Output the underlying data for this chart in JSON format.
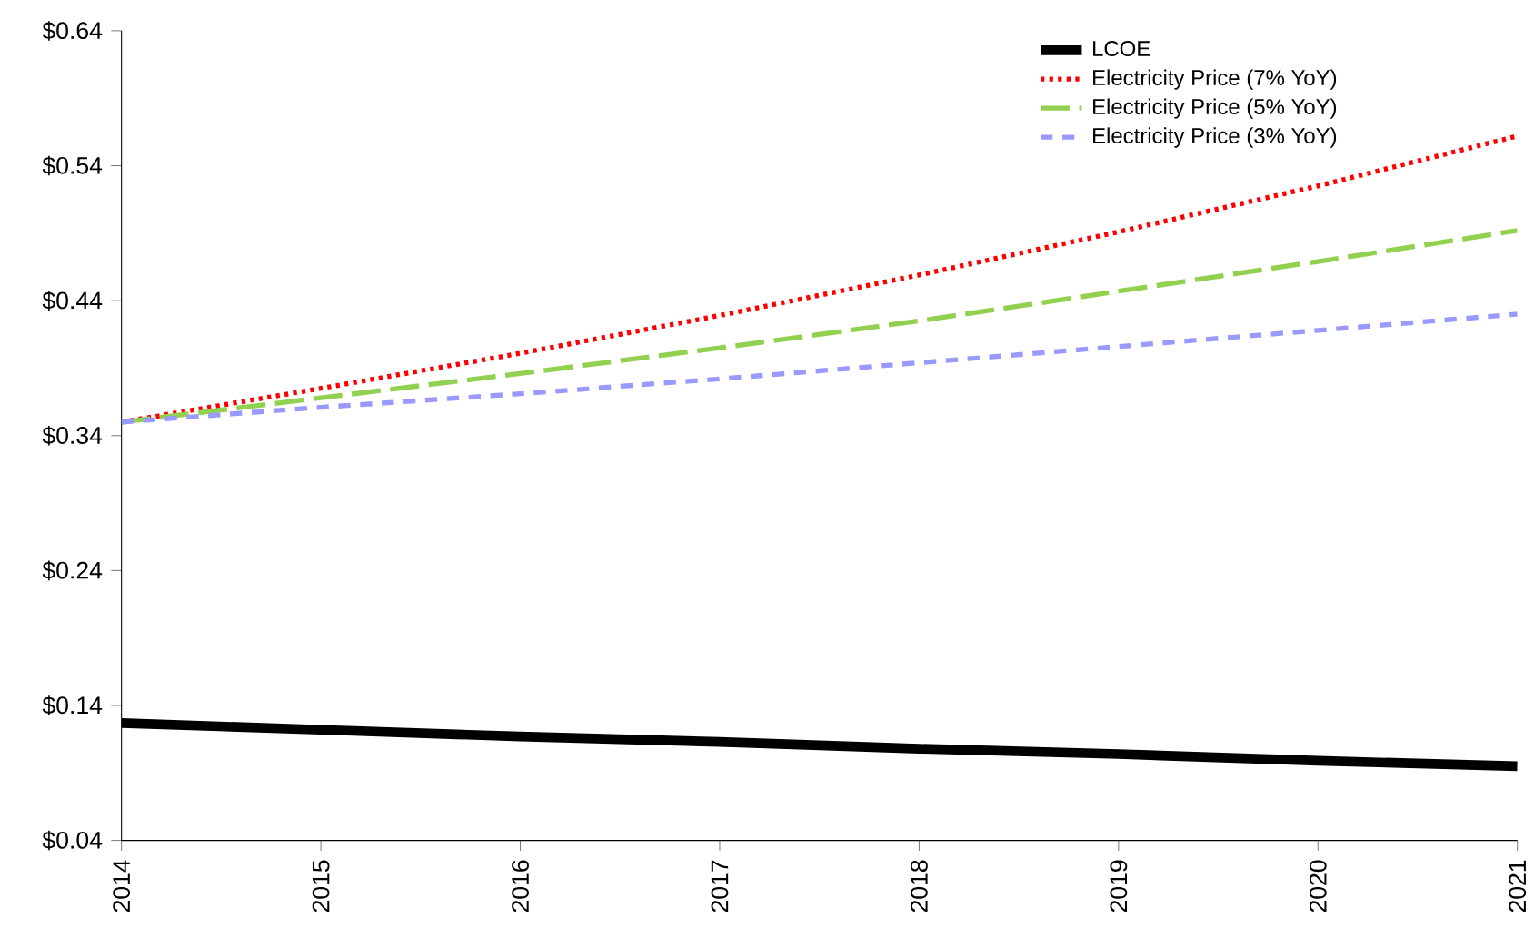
{
  "chart_data": {
    "type": "line",
    "x": [
      2014,
      2015,
      2016,
      2017,
      2018,
      2019,
      2020,
      2021
    ],
    "series": [
      {
        "name": "LCOE",
        "color": "#000000",
        "line_style": "solid",
        "values": [
          0.127,
          0.122,
          0.117,
          0.113,
          0.108,
          0.104,
          0.099,
          0.095
        ]
      },
      {
        "name": "Electricity Price (7% YoY)",
        "color": "#ff0000",
        "line_style": "dotted",
        "values": [
          0.35,
          0.375,
          0.401,
          0.429,
          0.459,
          0.491,
          0.525,
          0.562
        ]
      },
      {
        "name": "Electricity Price (5% YoY)",
        "color": "#92d050",
        "line_style": "dashed",
        "values": [
          0.35,
          0.368,
          0.386,
          0.405,
          0.425,
          0.447,
          0.469,
          0.492
        ]
      },
      {
        "name": "Electricity Price (3% YoY)",
        "color": "#9999ff",
        "line_style": "dashed",
        "values": [
          0.35,
          0.361,
          0.371,
          0.382,
          0.394,
          0.406,
          0.418,
          0.43
        ]
      }
    ],
    "xlim": [
      2014,
      2021
    ],
    "xticks": [
      2014,
      2015,
      2016,
      2017,
      2018,
      2019,
      2020,
      2021
    ],
    "ylim": [
      0.04,
      0.64
    ],
    "yticks": [
      {
        "value": 0.04,
        "label": "$0.04"
      },
      {
        "value": 0.14,
        "label": "$0.14"
      },
      {
        "value": 0.24,
        "label": "$0.24"
      },
      {
        "value": 0.34,
        "label": "$0.34"
      },
      {
        "value": 0.44,
        "label": "$0.44"
      },
      {
        "value": 0.54,
        "label": "$0.54"
      },
      {
        "value": 0.64,
        "label": "$0.64"
      }
    ],
    "grid": false,
    "legend": "top right"
  }
}
